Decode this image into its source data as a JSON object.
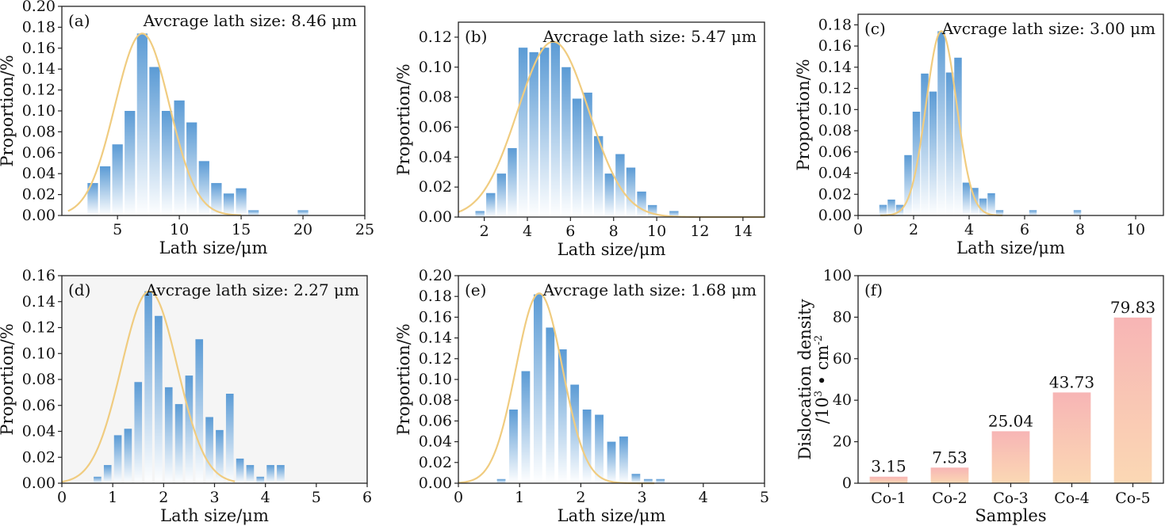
{
  "chart_data": [
    {
      "id": "a",
      "type": "bar",
      "panel_label": "(a)",
      "annotation": "Avcrage lath size: 8.46 μm",
      "xlabel": "Lath size/μm",
      "ylabel": "Proportion/%",
      "xlim": [
        0.5,
        25
      ],
      "ylim": [
        0,
        0.2
      ],
      "xticks": [
        5,
        10,
        15,
        20,
        25
      ],
      "yticks": [
        0,
        0.02,
        0.04,
        0.06,
        0.08,
        0.1,
        0.12,
        0.14,
        0.16,
        0.18,
        0.2
      ],
      "ytick_decimals": 2,
      "bar_width": 0.85,
      "bars": [
        [
          3,
          0.031
        ],
        [
          4,
          0.047
        ],
        [
          5,
          0.068
        ],
        [
          6,
          0.1
        ],
        [
          7,
          0.174
        ],
        [
          8,
          0.142
        ],
        [
          9,
          0.1
        ],
        [
          10,
          0.11
        ],
        [
          11,
          0.089
        ],
        [
          12,
          0.052
        ],
        [
          13,
          0.031
        ],
        [
          14,
          0.021
        ],
        [
          15,
          0.026
        ],
        [
          16,
          0.005
        ],
        [
          20,
          0.005
        ]
      ],
      "fit": {
        "amp": 0.174,
        "mean": 7.0,
        "sigma": 2.2,
        "range": [
          1.0,
          15.0
        ]
      },
      "background": "#ffffff"
    },
    {
      "id": "b",
      "type": "bar",
      "panel_label": "(b)",
      "annotation": "Avcrage lath size: 5.47 μm",
      "xlabel": "Lath size/μm",
      "ylabel": "Proportion/%",
      "xlim": [
        0.8,
        15
      ],
      "ylim": [
        0,
        0.13
      ],
      "xticks": [
        2,
        4,
        6,
        8,
        10,
        12,
        14
      ],
      "yticks": [
        0,
        0.02,
        0.04,
        0.06,
        0.08,
        0.1,
        0.12
      ],
      "ytick_decimals": 2,
      "bar_width": 0.42,
      "bars": [
        [
          1.8,
          0.004
        ],
        [
          2.3,
          0.016
        ],
        [
          2.8,
          0.029
        ],
        [
          3.3,
          0.046
        ],
        [
          3.8,
          0.113
        ],
        [
          4.3,
          0.11
        ],
        [
          4.8,
          0.113
        ],
        [
          5.3,
          0.117
        ],
        [
          5.8,
          0.1
        ],
        [
          6.3,
          0.079
        ],
        [
          6.8,
          0.083
        ],
        [
          7.3,
          0.054
        ],
        [
          7.8,
          0.029
        ],
        [
          8.3,
          0.042
        ],
        [
          8.8,
          0.033
        ],
        [
          9.3,
          0.017
        ],
        [
          9.8,
          0.008
        ],
        [
          10.8,
          0.004
        ]
      ],
      "fit": {
        "amp": 0.117,
        "mean": 5.2,
        "sigma": 1.65,
        "range": [
          0.8,
          15.0
        ]
      },
      "background": "#ffffff"
    },
    {
      "id": "c",
      "type": "bar",
      "panel_label": "(c)",
      "annotation": "Avcrage lath size: 3.00 μm",
      "xlabel": "Lath size/μm",
      "ylabel": "Proportion/%",
      "xlim": [
        0,
        11
      ],
      "ylim": [
        0,
        0.19
      ],
      "xticks": [
        0,
        2,
        4,
        6,
        8,
        10
      ],
      "yticks": [
        0,
        0.02,
        0.04,
        0.06,
        0.08,
        0.1,
        0.12,
        0.14,
        0.16,
        0.18
      ],
      "ytick_decimals": 2,
      "bar_width": 0.27,
      "bars": [
        [
          0.9,
          0.01
        ],
        [
          1.2,
          0.015
        ],
        [
          1.5,
          0.01
        ],
        [
          1.8,
          0.057
        ],
        [
          2.1,
          0.098
        ],
        [
          2.4,
          0.134
        ],
        [
          2.7,
          0.117
        ],
        [
          3.0,
          0.174
        ],
        [
          3.3,
          0.135
        ],
        [
          3.6,
          0.149
        ],
        [
          3.9,
          0.031
        ],
        [
          4.2,
          0.026
        ],
        [
          4.5,
          0.016
        ],
        [
          4.8,
          0.021
        ],
        [
          5.1,
          0.005
        ],
        [
          6.3,
          0.005
        ],
        [
          7.9,
          0.005
        ]
      ],
      "fit": {
        "amp": 0.174,
        "mean": 3.0,
        "sigma": 0.55,
        "range": [
          0.8,
          5.2
        ]
      },
      "background": "#ffffff"
    },
    {
      "id": "d",
      "type": "bar",
      "panel_label": "(d)",
      "annotation": "Avcrage lath size: 2.27 μm",
      "xlabel": "Lath size/μm",
      "ylabel": "Proportion/%",
      "xlim": [
        0,
        6
      ],
      "ylim": [
        0,
        0.16
      ],
      "xticks": [
        0,
        1,
        2,
        3,
        4,
        5,
        6
      ],
      "yticks": [
        0,
        0.02,
        0.04,
        0.06,
        0.08,
        0.1,
        0.12,
        0.14,
        0.16
      ],
      "ytick_decimals": 2,
      "bar_width": 0.15,
      "bars": [
        [
          0.7,
          0.005
        ],
        [
          0.9,
          0.014
        ],
        [
          1.1,
          0.037
        ],
        [
          1.3,
          0.042
        ],
        [
          1.5,
          0.078
        ],
        [
          1.7,
          0.148
        ],
        [
          1.9,
          0.129
        ],
        [
          2.1,
          0.074
        ],
        [
          2.3,
          0.061
        ],
        [
          2.5,
          0.083
        ],
        [
          2.7,
          0.111
        ],
        [
          2.9,
          0.051
        ],
        [
          3.1,
          0.041
        ],
        [
          3.3,
          0.069
        ],
        [
          3.5,
          0.019
        ],
        [
          3.7,
          0.014
        ],
        [
          3.9,
          0.005
        ],
        [
          4.1,
          0.014
        ],
        [
          4.3,
          0.014
        ]
      ],
      "fit": {
        "amp": 0.148,
        "mean": 1.72,
        "sigma": 0.55,
        "range": [
          0.0,
          3.4
        ]
      },
      "background": "#f5f5f5"
    },
    {
      "id": "e",
      "type": "bar",
      "panel_label": "(e)",
      "annotation": "Avcrage lath size: 1.68 μm",
      "xlabel": "Lath size/μm",
      "ylabel": "Proportion/%",
      "xlim": [
        0,
        5
      ],
      "ylim": [
        0,
        0.2
      ],
      "xticks": [
        0,
        1,
        2,
        3,
        4,
        5
      ],
      "yticks": [
        0,
        0.02,
        0.04,
        0.06,
        0.08,
        0.1,
        0.12,
        0.14,
        0.16,
        0.18,
        0.2
      ],
      "ytick_decimals": 2,
      "bar_width": 0.14,
      "bars": [
        [
          0.7,
          0.004
        ],
        [
          0.9,
          0.071
        ],
        [
          1.1,
          0.108
        ],
        [
          1.3,
          0.182
        ],
        [
          1.5,
          0.15
        ],
        [
          1.7,
          0.129
        ],
        [
          1.9,
          0.095
        ],
        [
          2.1,
          0.071
        ],
        [
          2.3,
          0.066
        ],
        [
          2.5,
          0.04
        ],
        [
          2.7,
          0.045
        ],
        [
          2.9,
          0.009
        ],
        [
          3.1,
          0.004
        ],
        [
          3.3,
          0.004
        ]
      ],
      "fit": {
        "amp": 0.183,
        "mean": 1.32,
        "sigma": 0.38,
        "range": [
          0.0,
          3.2
        ]
      },
      "background": "#ffffff"
    },
    {
      "id": "f",
      "type": "bar",
      "panel_label": "(f)",
      "xlabel": "Samples",
      "ylabel_line1": "Dislocation density",
      "ylabel_line2": "/10",
      "ylabel_sup": "3",
      "ylabel_unit": " • cm",
      "ylabel_unit_sup": "-2",
      "ylim": [
        0,
        100
      ],
      "yticks": [
        0,
        20,
        40,
        60,
        80,
        100
      ],
      "ytick_decimals": 0,
      "categories": [
        "Co-1",
        "Co-2",
        "Co-3",
        "Co-4",
        "Co-5"
      ],
      "values": [
        3.15,
        7.53,
        25.04,
        43.73,
        79.83
      ],
      "value_labels": [
        "3.15",
        "7.53",
        "25.04",
        "43.73",
        "79.83"
      ],
      "background": "#ffffff"
    }
  ],
  "colors": {
    "bar_top": "#5b9bd5",
    "bar_bottom": "#ffffff",
    "fit_curve": "#f0cc80",
    "f_bar_top": "#f7b5b5",
    "f_bar_bottom": "#fbd8b4",
    "axis": "#222222"
  }
}
